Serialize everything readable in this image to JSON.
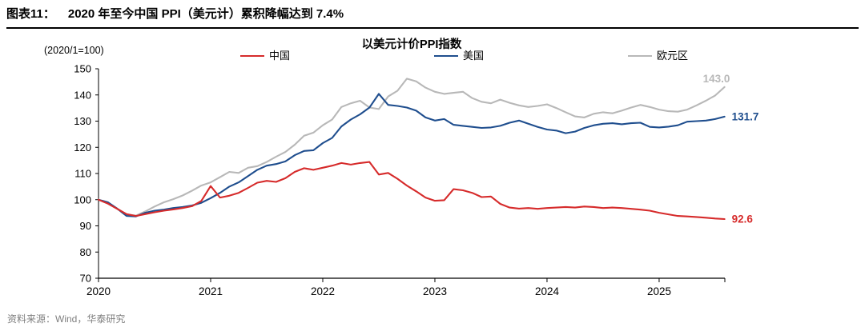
{
  "header": {
    "fig_label": "图表11：",
    "title": "2020 年至今中国 PPI（美元计）累积降幅达到 7.4%"
  },
  "footer": {
    "source": "资料来源：Wind，华泰研究"
  },
  "chart_data": {
    "type": "line",
    "title": "以美元计价PPI指数",
    "unit_label": "(2020/1=100)",
    "x_start_year": 2020,
    "x_end": 2025.586,
    "x_ticks": [
      2020,
      2021,
      2022,
      2023,
      2024,
      2025
    ],
    "ylim": [
      70,
      150
    ],
    "y_tick_step": 10,
    "grid": false,
    "legend_position": "top",
    "axis_color": "#000000",
    "series": [
      {
        "key": "china",
        "name": "中国",
        "color": "#d62b2b",
        "end_label": "92.6",
        "values": [
          100,
          98.5,
          96.5,
          94.5,
          93.8,
          94.5,
          95.2,
          95.8,
          96.3,
          96.8,
          97.5,
          99.5,
          105.2,
          100.8,
          101.5,
          102.6,
          104.5,
          106.5,
          107.2,
          106.8,
          108.2,
          110.6,
          112.0,
          111.4,
          112.2,
          113.0,
          114.0,
          113.4,
          114.0,
          114.4,
          109.6,
          110.2,
          108.0,
          105.4,
          103.2,
          100.8,
          99.6,
          99.8,
          104.0,
          103.6,
          102.6,
          101.0,
          101.2,
          98.4,
          97.0,
          96.6,
          96.8,
          96.5,
          96.8,
          97.0,
          97.2,
          97.0,
          97.4,
          97.2,
          96.8,
          97.0,
          96.8,
          96.5,
          96.2,
          95.8,
          95.0,
          94.4,
          93.8,
          93.6,
          93.4,
          93.1,
          92.8,
          92.6
        ]
      },
      {
        "key": "us",
        "name": "美国",
        "color": "#1f4e8e",
        "end_label": "131.7",
        "values": [
          100,
          99.0,
          96.6,
          93.8,
          93.6,
          95.0,
          95.8,
          96.2,
          96.8,
          97.2,
          97.8,
          98.8,
          100.6,
          102.6,
          105.0,
          106.6,
          109.0,
          111.4,
          113.0,
          113.6,
          114.6,
          117.0,
          118.6,
          118.9,
          121.6,
          123.6,
          128.0,
          130.6,
          132.6,
          135.2,
          140.4,
          136.2,
          135.8,
          135.2,
          134.0,
          131.4,
          130.2,
          130.8,
          128.6,
          128.2,
          127.8,
          127.4,
          127.6,
          128.2,
          129.4,
          130.2,
          129.0,
          127.8,
          126.8,
          126.4,
          125.4,
          126.0,
          127.4,
          128.4,
          129.0,
          129.2,
          128.8,
          129.2,
          129.4,
          127.8,
          127.6,
          127.9,
          128.4,
          129.8,
          130.0,
          130.2,
          130.8,
          131.7
        ]
      },
      {
        "key": "eurozone",
        "name": "欧元区",
        "color": "#b8b8b8",
        "end_label": "143.0",
        "values": [
          100,
          98.8,
          96.6,
          94.4,
          93.9,
          95.5,
          97.4,
          99.0,
          100.2,
          101.6,
          103.4,
          105.4,
          106.6,
          108.6,
          110.6,
          110.2,
          112.2,
          112.8,
          114.4,
          116.4,
          118.2,
          121.0,
          124.4,
          125.6,
          128.4,
          130.6,
          135.4,
          136.8,
          137.8,
          135.2,
          134.6,
          139.4,
          141.6,
          146.2,
          145.2,
          142.8,
          141.2,
          140.4,
          140.8,
          141.2,
          138.8,
          137.4,
          136.8,
          138.2,
          137.0,
          136.0,
          135.4,
          135.8,
          136.4,
          135.0,
          133.4,
          131.8,
          131.4,
          132.8,
          133.4,
          133.0,
          134.0,
          135.2,
          136.2,
          135.4,
          134.4,
          133.8,
          133.6,
          134.4,
          136.0,
          137.8,
          139.8,
          143.0
        ]
      }
    ]
  }
}
